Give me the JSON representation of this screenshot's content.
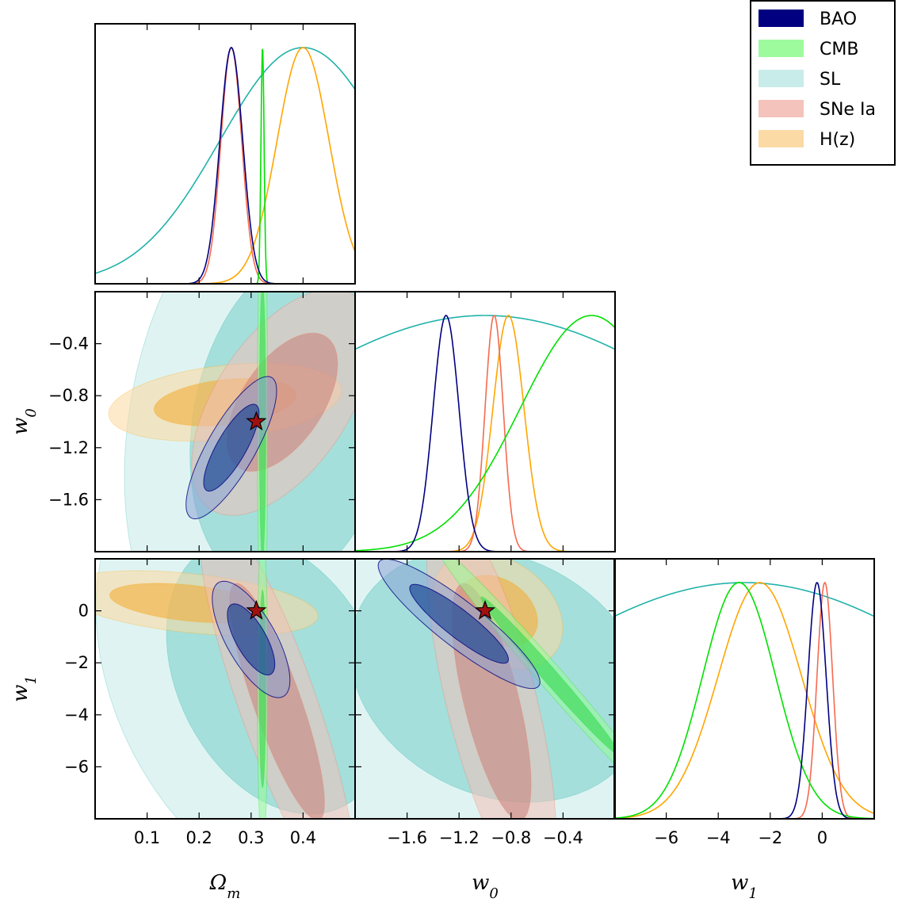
{
  "chart_data": {
    "type": "corner-triangle",
    "parameters": [
      {
        "key": "Om",
        "label": "Ωm",
        "range": [
          0.0,
          0.5
        ],
        "ticks": [
          0.1,
          0.2,
          0.3,
          0.4
        ],
        "tick_labels": [
          "0.1",
          "0.2",
          "0.3",
          "0.4"
        ]
      },
      {
        "key": "w0",
        "label": "w0",
        "range": [
          -2.0,
          0.0
        ],
        "ticks": [
          -1.6,
          -1.2,
          -0.8,
          -0.4
        ],
        "tick_labels": [
          "−1.6",
          "−1.2",
          "−0.8",
          "−0.4"
        ]
      },
      {
        "key": "w1",
        "label": "w1",
        "range": [
          -8.0,
          2.0
        ],
        "ticks": [
          -6,
          -4,
          -2,
          0
        ],
        "tick_labels": [
          "−6",
          "−4",
          "−2",
          "0"
        ]
      }
    ],
    "fiducial": {
      "Om": 0.31,
      "w0": -1.0,
      "w1": 0.0
    },
    "legend": {
      "position": "top-right",
      "entries": [
        "BAO",
        "CMB",
        "SL",
        "SNe Ia",
        "H(z)"
      ]
    },
    "series": [
      {
        "name": "BAO",
        "line": "#000080",
        "fill": "#0b3a8c",
        "fill_light": "#8aa3d6",
        "Om": {
          "mean": 0.262,
          "sigma": 0.022
        },
        "w0": {
          "mean": -1.3,
          "sigma": 0.1
        },
        "w1": {
          "mean": -0.2,
          "sigma": 0.35
        },
        "c_Om_w0": {
          "mean": [
            0.262,
            -1.2
          ],
          "sx": 0.035,
          "sy": 0.22,
          "rho": 0.8
        },
        "c_Om_w1": {
          "mean": [
            0.3,
            -1.1
          ],
          "sx": 0.03,
          "sy": 0.9,
          "rho": -0.7
        },
        "c_w0_w1": {
          "mean": [
            -1.2,
            -0.5
          ],
          "sx": 0.25,
          "sy": 1.0,
          "rho": -0.9
        }
      },
      {
        "name": "CMB",
        "line": "#00e000",
        "fill": "#33d94f",
        "fill_light": "#98fb98",
        "Om": {
          "mean": 0.322,
          "sigma": 0.003
        },
        "w0": {
          "mean": -0.18,
          "sigma": 0.55
        },
        "w1": {
          "mean": -3.2,
          "sigma": 1.4
        },
        "c_Om_w0": {
          "mean": [
            0.322,
            -1.0
          ],
          "sx": 0.004,
          "sy": 0.7,
          "rho": 0.0
        },
        "c_Om_w1": {
          "mean": [
            0.322,
            -3.0
          ],
          "sx": 0.004,
          "sy": 2.5,
          "rho": 0.0
        },
        "c_w0_w1": {
          "mean": [
            -0.5,
            -2.5
          ],
          "sx": 0.35,
          "sy": 2.0,
          "rho": -0.99
        }
      },
      {
        "name": "SL",
        "line": "#20b2aa",
        "fill": "#7fd1cb",
        "fill_light": "#c5ebe8",
        "Om": {
          "mean": 0.4,
          "sigma": 0.16
        },
        "w0": {
          "mean": -1.0,
          "sigma": 1.8
        },
        "w1": {
          "mean": -3.0,
          "sigma": 9.0
        },
        "c_Om_w0": {
          "mean": [
            0.38,
            -1.0
          ],
          "sx": 0.13,
          "sy": 0.85,
          "rho": 0.2
        },
        "c_Om_w1": {
          "mean": [
            0.35,
            -2.5
          ],
          "sx": 0.14,
          "sy": 3.5,
          "rho": -0.3
        },
        "c_w0_w1": {
          "mean": [
            -0.9,
            -2.5
          ],
          "sx": 0.75,
          "sy": 3.2,
          "rho": -0.2
        }
      },
      {
        "name": "SNe Ia",
        "line": "#f56a50",
        "fill": "#c9867e",
        "fill_light": "#f3c0b8",
        "Om": {
          "mean": 0.262,
          "sigma": 0.02
        },
        "w0": {
          "mean": -0.93,
          "sigma": 0.07
        },
        "w1": {
          "mean": 0.1,
          "sigma": 0.3
        },
        "c_Om_w0": {
          "mean": [
            0.36,
            -0.85
          ],
          "sx": 0.07,
          "sy": 0.35,
          "rho": 0.55
        },
        "c_Om_w1": {
          "mean": [
            0.35,
            -3.5
          ],
          "sx": 0.06,
          "sy": 3.0,
          "rho": -0.85
        },
        "c_w0_w1": {
          "mean": [
            -0.95,
            -3.5
          ],
          "sx": 0.2,
          "sy": 3.0,
          "rho": -0.7
        }
      },
      {
        "name": "H(z)",
        "line": "#ffa500",
        "fill": "#f2ad3a",
        "fill_light": "#fbd8a0",
        "Om": {
          "mean": 0.4,
          "sigma": 0.05
        },
        "w0": {
          "mean": -0.82,
          "sigma": 0.12
        },
        "w1": {
          "mean": -2.4,
          "sigma": 1.6
        },
        "c_Om_w0": {
          "mean": [
            0.25,
            -0.85
          ],
          "sx": 0.09,
          "sy": 0.12,
          "rho": 0.3
        },
        "c_Om_w1": {
          "mean": [
            0.18,
            0.3
          ],
          "sx": 0.1,
          "sy": 0.5,
          "rho": -0.4
        },
        "c_w0_w1": {
          "mean": [
            -0.9,
            0.0
          ],
          "sx": 0.2,
          "sy": 0.9,
          "rho": -0.3
        }
      }
    ]
  }
}
